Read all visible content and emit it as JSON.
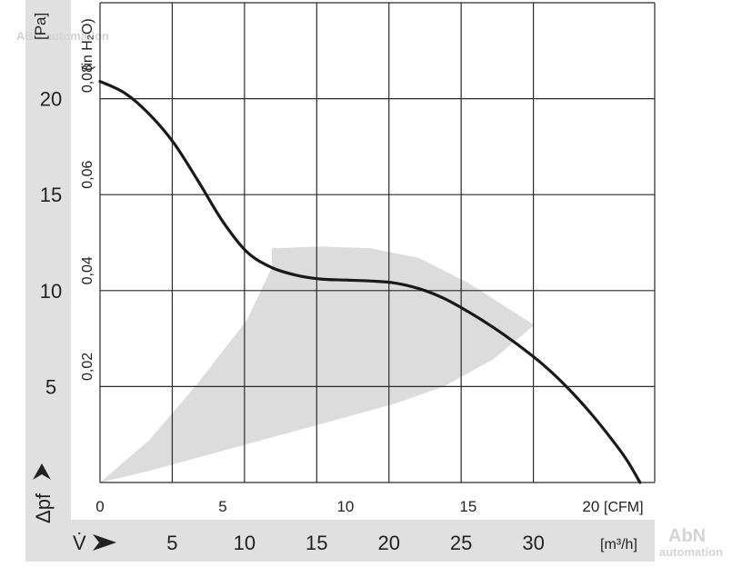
{
  "chart_data": {
    "type": "line",
    "x_cfm": {
      "unit_label": "[CFM]",
      "range": [
        0,
        22.6
      ],
      "tick_labels": [
        "0",
        "5",
        "10",
        "15",
        "20"
      ],
      "tick_values": [
        0,
        5,
        10,
        15,
        20
      ]
    },
    "x_m3h": {
      "unit_label": "[m³/h]",
      "symbol": "V̇",
      "tick_labels": [
        "5",
        "10",
        "15",
        "20",
        "25",
        "30"
      ],
      "tick_values": [
        5,
        10,
        15,
        20,
        25,
        30
      ]
    },
    "y_pa": {
      "unit_label": "[Pa]",
      "symbol": "Δpf",
      "range": [
        0,
        25
      ],
      "tick_labels": [
        "5",
        "10",
        "15",
        "20"
      ],
      "tick_values": [
        5,
        10,
        15,
        20
      ]
    },
    "y_inh2o": {
      "unit_label": "(in H₂O)",
      "tick_labels": [
        "0,02",
        "0,04",
        "0,06",
        "0,08"
      ],
      "tick_values_pa": [
        5,
        10,
        15,
        20
      ]
    },
    "grid": true,
    "curve": {
      "x": [
        0,
        1,
        2,
        3,
        4,
        5,
        6,
        7,
        8,
        9,
        10,
        11,
        12,
        13,
        14,
        15,
        16,
        17,
        18,
        19,
        20,
        21,
        21.5,
        22.0
      ],
      "y": [
        20.9,
        20.3,
        19.2,
        17.7,
        15.7,
        13.6,
        12.0,
        11.2,
        10.8,
        10.6,
        10.55,
        10.5,
        10.4,
        10.1,
        9.6,
        8.9,
        8.1,
        7.2,
        6.2,
        5.0,
        3.6,
        2.0,
        1.1,
        0.0
      ]
    },
    "operating_region": {
      "upper_x": [
        0,
        2,
        4,
        6,
        7
      ],
      "upper_y": [
        0,
        2.2,
        5.2,
        8.5,
        11.2
      ],
      "top_x": [
        7,
        9,
        11,
        13,
        15,
        17.7
      ],
      "top_y": [
        12.2,
        12.3,
        12.2,
        11.7,
        10.4,
        8.2
      ],
      "lower_x": [
        17.7,
        16,
        14,
        12,
        10,
        8,
        6,
        4,
        2,
        0
      ],
      "lower_y": [
        8.2,
        6.4,
        5.0,
        4.1,
        3.4,
        2.7,
        2.0,
        1.3,
        0.6,
        0
      ],
      "color": "#dcdcdc"
    },
    "colors": {
      "curve": "#1a1a1a",
      "grid": "#2a2a2a",
      "band": "#e0e0e0"
    }
  },
  "watermark": {
    "top": "ABN automation",
    "bottom_line1": "AbN",
    "bottom_line2": "automation"
  }
}
